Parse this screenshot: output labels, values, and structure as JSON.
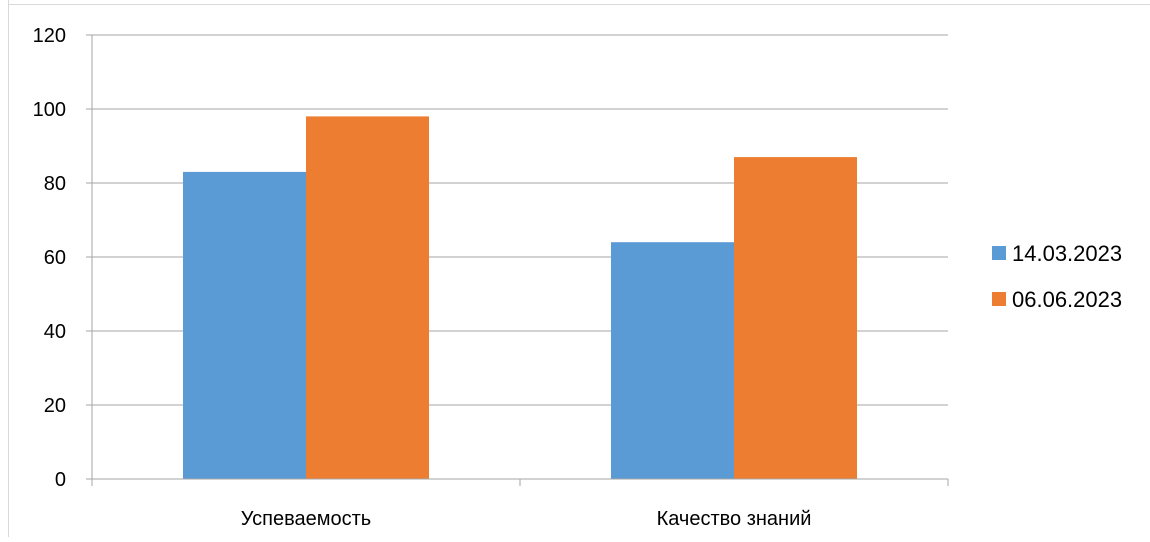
{
  "chart_data": {
    "type": "bar",
    "categories": [
      "Успеваемость",
      "Качество знаний"
    ],
    "series": [
      {
        "name": "14.03.2023",
        "values": [
          83,
          64
        ],
        "color": "#5b9bd5"
      },
      {
        "name": "06.06.2023",
        "values": [
          98,
          87
        ],
        "color": "#ed7d31"
      }
    ],
    "ylim": [
      0,
      120
    ],
    "yticks": [
      0,
      20,
      40,
      60,
      80,
      100,
      120
    ],
    "grid": true,
    "legend_position": "right"
  }
}
